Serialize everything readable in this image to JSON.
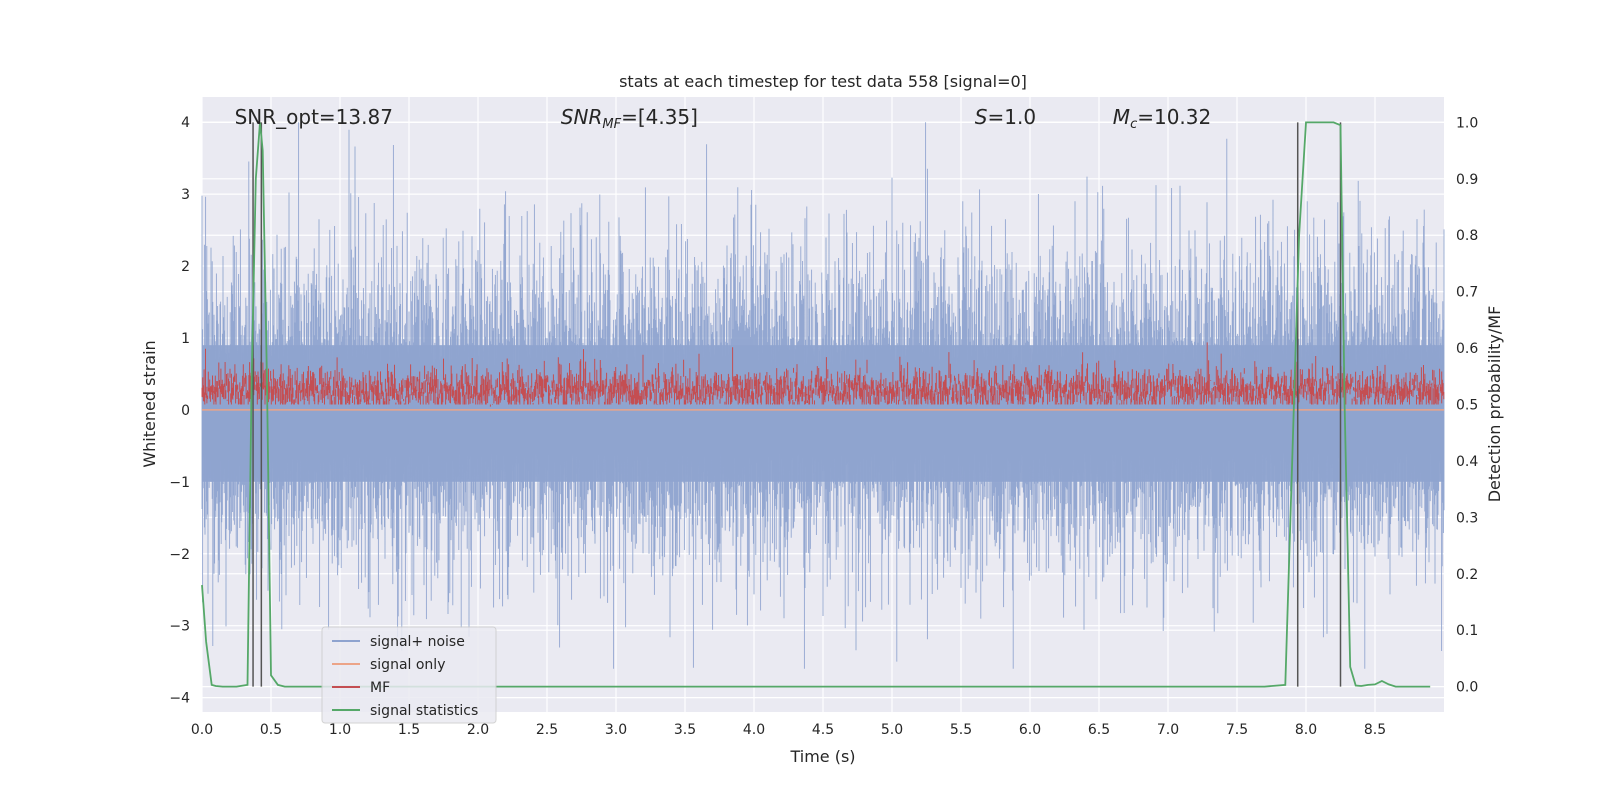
{
  "chart_data": {
    "type": "line",
    "title": "stats at each timestep for test data 558 [signal=0]",
    "xlabel": "Time (s)",
    "ylabel_left": "Whitened strain",
    "ylabel_right": "Detection probability/MF",
    "xlim": [
      0.0,
      9.0
    ],
    "ylim_left": [
      -4.2,
      4.35
    ],
    "ylim_right": [
      -0.045,
      1.045
    ],
    "x_ticks": [
      "0.0",
      "0.5",
      "1.0",
      "1.5",
      "2.0",
      "2.5",
      "3.0",
      "3.5",
      "4.0",
      "4.5",
      "5.0",
      "5.5",
      "6.0",
      "6.5",
      "7.0",
      "7.5",
      "8.0",
      "8.5"
    ],
    "y_ticks_left": [
      "4",
      "3",
      "2",
      "1",
      "0",
      "−1",
      "−2",
      "−3",
      "−4"
    ],
    "y_ticks_right": [
      "1.0",
      "0.9",
      "0.8",
      "0.7",
      "0.6",
      "0.5",
      "0.4",
      "0.3",
      "0.2",
      "0.1",
      "0.0"
    ],
    "grid": true,
    "legend_position": "lower-left",
    "annotations": [
      {
        "text": "SNR_opt=13.87",
        "x": 0.2
      },
      {
        "text": "SNR",
        "sub": "MF",
        "suffix": "=[4.35]",
        "x": 2.6
      },
      {
        "text": "S",
        "suffix": "=1.0",
        "x": 5.6
      },
      {
        "text": "M",
        "sub": "c",
        "suffix": "=10.32",
        "x": 6.6
      }
    ],
    "vertical_markers": [
      0.37,
      0.43,
      7.94,
      8.25
    ],
    "series": [
      {
        "name": "signal+ noise",
        "color": "#8ea3cf",
        "axis": "left",
        "description_range": [
          -3.6,
          4.0
        ]
      },
      {
        "name": "signal only",
        "color": "#eca488",
        "axis": "left",
        "values_approx": 0.0
      },
      {
        "name": "MF",
        "color": "#c44e52",
        "axis": "right",
        "range": [
          0.5,
          0.6
        ]
      },
      {
        "name": "signal statistics",
        "color": "#55a868",
        "axis": "right",
        "x": [
          0.0,
          0.03,
          0.07,
          0.1,
          0.15,
          0.2,
          0.25,
          0.3,
          0.33,
          0.36,
          0.39,
          0.42,
          0.44,
          0.47,
          0.5,
          0.55,
          0.6,
          0.8,
          1.0,
          2.0,
          3.0,
          4.0,
          5.0,
          6.0,
          7.0,
          7.5,
          7.7,
          7.85,
          7.9,
          7.95,
          8.0,
          8.05,
          8.1,
          8.15,
          8.2,
          8.25,
          8.28,
          8.32,
          8.36,
          8.4,
          8.45,
          8.5,
          8.55,
          8.6,
          8.65,
          8.7,
          8.8,
          8.9
        ],
        "y": [
          0.18,
          0.08,
          0.003,
          0.001,
          0.0,
          0.0,
          0.0,
          0.002,
          0.003,
          0.55,
          0.9,
          1.0,
          0.95,
          0.55,
          0.02,
          0.003,
          0.0,
          0.0,
          0.0,
          0.0,
          0.0,
          0.0,
          0.0,
          0.0,
          0.0,
          0.0,
          0.0,
          0.003,
          0.4,
          0.8,
          1.0,
          1.0,
          1.0,
          1.0,
          1.0,
          0.995,
          0.5,
          0.035,
          0.002,
          0.001,
          0.003,
          0.004,
          0.01,
          0.004,
          0.0,
          0.0,
          0.0,
          0.0
        ]
      }
    ]
  },
  "colors": {
    "plot_bg": "#eaeaf2",
    "grid": "#ffffff",
    "text": "#262626",
    "marker": "#555555"
  }
}
